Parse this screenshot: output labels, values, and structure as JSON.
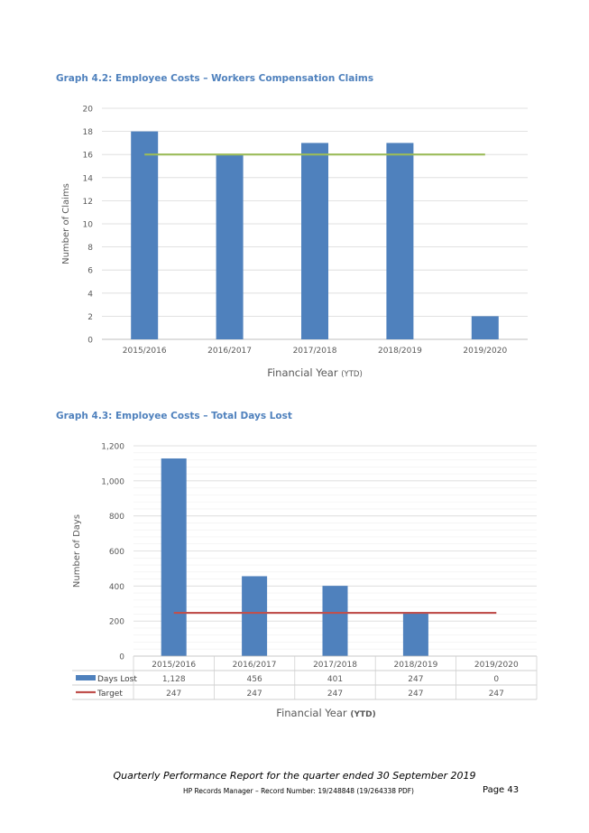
{
  "footer": {
    "title": "Quarterly Performance Report for the quarter ended 30 September 2019",
    "record": "HP Records Manager – Record Number: 19/248848 (19/264338 PDF)",
    "page": "Page 43"
  },
  "chart_data": [
    {
      "type": "bar",
      "title": "Graph 4.2: Employee Costs – Workers Compensation Claims",
      "xlabel": "Financial Year",
      "xlabel_suffix": "(YTD)",
      "ylabel": "Number of Claims",
      "categories": [
        "2015/2016",
        "2016/2017",
        "2017/2018",
        "2018/2019",
        "2019/2020"
      ],
      "series": [
        {
          "name": "",
          "kind": "bar",
          "color": "#4f81bd",
          "values": [
            18,
            16,
            17,
            17,
            2
          ]
        },
        {
          "name": "",
          "kind": "line",
          "color": "#9bbb59",
          "values": [
            16,
            16,
            16,
            16,
            16
          ]
        }
      ],
      "ylim": [
        0,
        20
      ],
      "yticks": [
        0,
        2,
        4,
        6,
        8,
        10,
        12,
        14,
        16,
        18,
        20
      ],
      "grid": true
    },
    {
      "type": "bar",
      "title": "Graph 4.3: Employee Costs – Total Days Lost",
      "xlabel": "Financial Year",
      "xlabel_suffix": "(YTD)",
      "ylabel": "Number of Days",
      "categories": [
        "2015/2016",
        "2016/2017",
        "2017/2018",
        "2018/2019",
        "2019/2020"
      ],
      "series": [
        {
          "name": "Days Lost",
          "kind": "bar",
          "color": "#4f81bd",
          "values": [
            1128,
            456,
            401,
            247,
            0
          ],
          "labels": [
            "1,128",
            "456",
            "401",
            "247",
            "0"
          ]
        },
        {
          "name": "Target",
          "kind": "line",
          "color": "#c0504d",
          "values": [
            247,
            247,
            247,
            247,
            247
          ],
          "labels": [
            "247",
            "247",
            "247",
            "247",
            "247"
          ]
        }
      ],
      "ylim": [
        0,
        1200
      ],
      "yticks": [
        0,
        200,
        400,
        600,
        800,
        1000,
        1200
      ],
      "ytick_labels": [
        "0",
        "200",
        "400",
        "600",
        "800",
        "1,000",
        "1,200"
      ],
      "grid": true,
      "data_table": true
    }
  ]
}
